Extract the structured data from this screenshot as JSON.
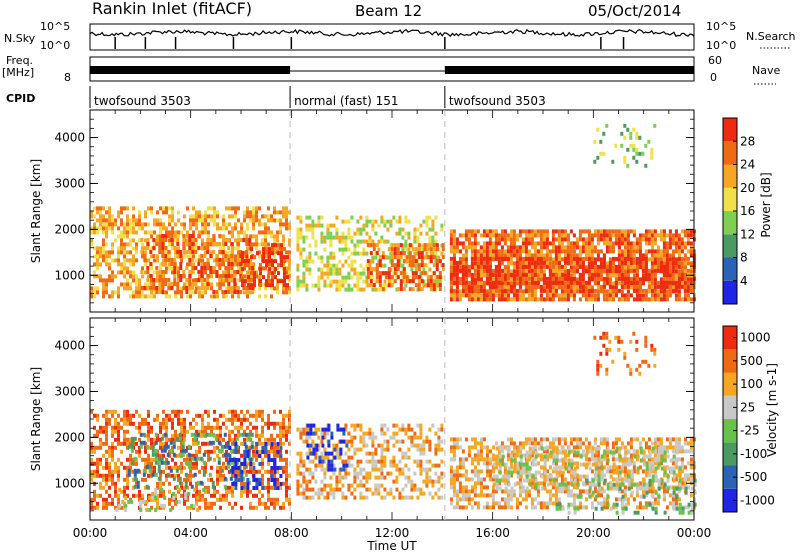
{
  "header": {
    "title": "Rankin Inlet (fitACF)",
    "beam": "Beam 12",
    "date": "05/Oct/2014"
  },
  "summary_panels": {
    "nsky_label": "N.Sky",
    "nsky_ticks": [
      "10^5",
      "10^0"
    ],
    "nsearch_label": "N.Search",
    "nsearch_ticks": [
      "10^5",
      "10^0"
    ],
    "freq_label": "Freq.",
    "freq_unit": "[MHz]",
    "freq_ticks": [
      "8"
    ],
    "nave_label": "Nave",
    "nave_ticks": [
      "60",
      "0"
    ],
    "cpid_label": "CPID",
    "cpid_segments": [
      {
        "label": "twofsound 3503",
        "start_h": 0,
        "end_h": 7.95
      },
      {
        "label": "normal (fast) 151",
        "start_h": 7.95,
        "end_h": 14.1
      },
      {
        "label": "twofsound 3503",
        "start_h": 14.1,
        "end_h": 24
      }
    ]
  },
  "chart_data": [
    {
      "type": "heatmap",
      "panel": "power",
      "ylabel": "Slant Range [km]",
      "xlabel": "",
      "xlim": [
        0,
        24
      ],
      "ylim": [
        200,
        4600
      ],
      "y_ticks": [
        "1000",
        "2000",
        "3000",
        "4000"
      ],
      "colorbar": {
        "label": "Power [dB]",
        "ticks": [
          "4",
          "8",
          "12",
          "16",
          "20",
          "24",
          "28"
        ],
        "levels": [
          "#1f24e6",
          "#2a62b5",
          "#4c9a62",
          "#7ecf52",
          "#f0e14a",
          "#f5a623",
          "#f06a14",
          "#ee2a10"
        ]
      },
      "regions": [
        {
          "x": [
            0,
            7.9
          ],
          "y": [
            500,
            2500
          ],
          "level": 5,
          "density": 0.55
        },
        {
          "x": [
            2.0,
            6.5
          ],
          "y": [
            600,
            1900
          ],
          "level": 6,
          "density": 0.5
        },
        {
          "x": [
            6.0,
            7.8
          ],
          "y": [
            800,
            1700
          ],
          "level": 7,
          "density": 0.45
        },
        {
          "x": [
            8.2,
            14.0
          ],
          "y": [
            700,
            2300
          ],
          "level": 4,
          "density": 0.45
        },
        {
          "x": [
            11.0,
            14.0
          ],
          "y": [
            700,
            1700
          ],
          "level": 6,
          "density": 0.5
        },
        {
          "x": [
            14.3,
            24.0
          ],
          "y": [
            500,
            2000
          ],
          "level": 6,
          "density": 0.8
        },
        {
          "x": [
            14.3,
            24.0
          ],
          "y": [
            700,
            1400
          ],
          "level": 7,
          "density": 0.55
        },
        {
          "x": [
            20.0,
            22.5
          ],
          "y": [
            3400,
            4300
          ],
          "level": 3,
          "density": 0.2
        }
      ]
    },
    {
      "type": "heatmap",
      "panel": "velocity",
      "ylabel": "Slant Range [km]",
      "xlabel": "Time UT",
      "xlim": [
        0,
        24
      ],
      "ylim": [
        200,
        4600
      ],
      "y_ticks": [
        "1000",
        "2000",
        "3000",
        "4000"
      ],
      "x_ticks": [
        "00:00",
        "04:00",
        "08:00",
        "12:00",
        "16:00",
        "20:00",
        "00:00"
      ],
      "colorbar": {
        "label": "Velocity [m s-1]",
        "ticks": [
          "1000",
          "500",
          "100",
          "25",
          "-25",
          "-100",
          "-500",
          "-1000"
        ],
        "levels": [
          "#1f24e6",
          "#2a62b5",
          "#4c9a62",
          "#66c24a",
          "#c8c8c8",
          "#f5a623",
          "#f06a14",
          "#ee2a10"
        ]
      },
      "regions": [
        {
          "x": [
            0,
            7.9
          ],
          "y": [
            500,
            2600
          ],
          "level": 6,
          "density": 0.5
        },
        {
          "x": [
            1.5,
            6.5
          ],
          "y": [
            900,
            2100
          ],
          "level": 2,
          "density": 0.3
        },
        {
          "x": [
            5.5,
            7.6
          ],
          "y": [
            900,
            1900
          ],
          "level": 0,
          "density": 0.35
        },
        {
          "x": [
            1.0,
            4.5
          ],
          "y": [
            400,
            900
          ],
          "level": 4,
          "density": 0.25
        },
        {
          "x": [
            8.2,
            14.0
          ],
          "y": [
            700,
            2300
          ],
          "level": 5,
          "density": 0.45
        },
        {
          "x": [
            8.6,
            10.2
          ],
          "y": [
            1300,
            2300
          ],
          "level": 0,
          "density": 0.35
        },
        {
          "x": [
            14.3,
            24.0
          ],
          "y": [
            500,
            2000
          ],
          "level": 5,
          "density": 0.55
        },
        {
          "x": [
            16.0,
            23.5
          ],
          "y": [
            900,
            1800
          ],
          "level": 4,
          "density": 0.45
        },
        {
          "x": [
            18.5,
            24.0
          ],
          "y": [
            400,
            1100
          ],
          "level": 3,
          "density": 0.25
        },
        {
          "x": [
            20.0,
            22.5
          ],
          "y": [
            3400,
            4300
          ],
          "level": 6,
          "density": 0.2
        }
      ]
    }
  ]
}
